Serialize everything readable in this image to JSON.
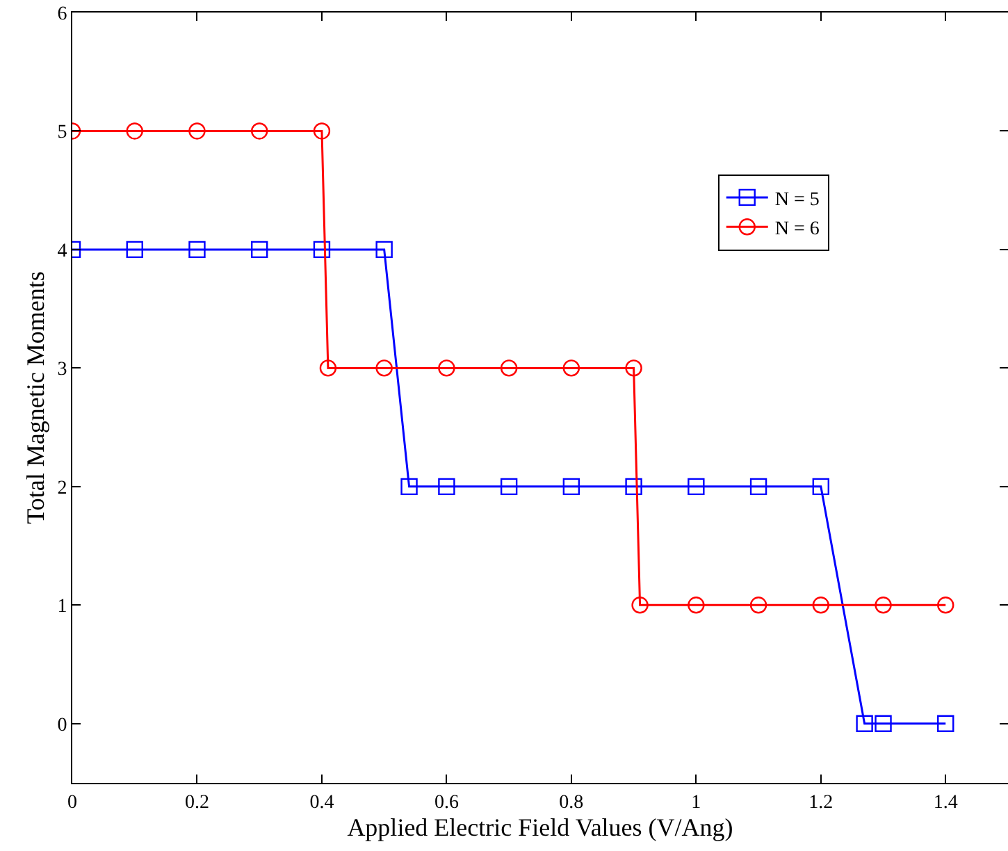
{
  "chart_data": {
    "type": "line",
    "xlabel": "Applied Electric Field Values (V/Ang)",
    "ylabel": "Total Magnetic Moments",
    "xlim": [
      0,
      1.5
    ],
    "xticks": [
      0,
      0.2,
      0.4,
      0.6,
      0.8,
      1,
      1.2,
      1.4
    ],
    "ylim": [
      -0.5,
      6
    ],
    "yticks": [
      0,
      1,
      2,
      3,
      4,
      5,
      6
    ],
    "grid": false,
    "legend": "top right",
    "line_style": "solid",
    "series": [
      {
        "name": "N = 5",
        "color": "#0000ff",
        "marker": "square",
        "x": [
          0,
          0.1,
          0.2,
          0.3,
          0.4,
          0.5,
          0.54,
          0.6,
          0.7,
          0.8,
          0.9,
          1.0,
          1.1,
          1.2,
          1.27,
          1.3,
          1.4
        ],
        "values": [
          4,
          4,
          4,
          4,
          4,
          4,
          2,
          2,
          2,
          2,
          2,
          2,
          2,
          2,
          0,
          0,
          0
        ]
      },
      {
        "name": "N = 6",
        "color": "#ff0000",
        "marker": "circle",
        "x": [
          0,
          0.1,
          0.2,
          0.3,
          0.4,
          0.41,
          0.5,
          0.6,
          0.7,
          0.8,
          0.9,
          0.91,
          1.0,
          1.1,
          1.2,
          1.3,
          1.4
        ],
        "values": [
          5,
          5,
          5,
          5,
          5,
          3,
          3,
          3,
          3,
          3,
          3,
          1,
          1,
          1,
          1,
          1,
          1
        ]
      }
    ]
  }
}
